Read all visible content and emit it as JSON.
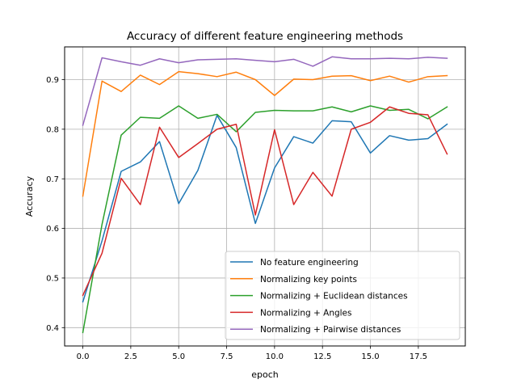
{
  "chart_data": {
    "type": "line",
    "title": "Accuracy of different feature engineering methods",
    "xlabel": "epoch",
    "ylabel": "Accuracy",
    "xlim": [
      -0.95,
      19.95
    ],
    "ylim": [
      0.363,
      0.966
    ],
    "xticks": [
      0.0,
      2.5,
      5.0,
      7.5,
      10.0,
      12.5,
      15.0,
      17.5
    ],
    "xtick_labels": [
      "0.0",
      "2.5",
      "5.0",
      "7.5",
      "10.0",
      "12.5",
      "15.0",
      "17.5"
    ],
    "yticks": [
      0.4,
      0.5,
      0.6,
      0.7,
      0.8,
      0.9
    ],
    "ytick_labels": [
      "0.4",
      "0.5",
      "0.6",
      "0.7",
      "0.8",
      "0.9"
    ],
    "grid": true,
    "legend_position": "lower-right",
    "x": [
      0,
      1,
      2,
      3,
      4,
      5,
      6,
      7,
      8,
      9,
      10,
      11,
      12,
      13,
      14,
      15,
      16,
      17,
      18,
      19
    ],
    "series": [
      {
        "name": "No feature engineering",
        "color": "#1f77b4",
        "values": [
          0.452,
          0.575,
          0.715,
          0.734,
          0.775,
          0.65,
          0.717,
          0.828,
          0.763,
          0.61,
          0.722,
          0.785,
          0.772,
          0.817,
          0.815,
          0.752,
          0.787,
          0.778,
          0.781,
          0.81
        ]
      },
      {
        "name": "Normalizing key points",
        "color": "#ff7f0e",
        "values": [
          0.665,
          0.897,
          0.876,
          0.909,
          0.89,
          0.916,
          0.912,
          0.906,
          0.915,
          0.9,
          0.868,
          0.901,
          0.9,
          0.907,
          0.908,
          0.898,
          0.907,
          0.895,
          0.906,
          0.908
        ]
      },
      {
        "name": "Normalizing + Euclidean distances",
        "color": "#2ca02c",
        "values": [
          0.39,
          0.608,
          0.788,
          0.824,
          0.822,
          0.847,
          0.822,
          0.83,
          0.795,
          0.834,
          0.838,
          0.837,
          0.837,
          0.845,
          0.835,
          0.847,
          0.838,
          0.84,
          0.821,
          0.845
        ]
      },
      {
        "name": "Normalizing + Angles",
        "color": "#d62728",
        "values": [
          0.465,
          0.55,
          0.701,
          0.648,
          0.804,
          0.743,
          0.771,
          0.8,
          0.81,
          0.627,
          0.799,
          0.648,
          0.713,
          0.665,
          0.8,
          0.814,
          0.845,
          0.832,
          0.829,
          0.75
        ]
      },
      {
        "name": "Normalizing + Pairwise distances",
        "color": "#9467bd",
        "values": [
          0.808,
          0.944,
          0.936,
          0.929,
          0.942,
          0.934,
          0.94,
          0.941,
          0.942,
          0.939,
          0.936,
          0.941,
          0.927,
          0.946,
          0.942,
          0.942,
          0.943,
          0.942,
          0.945,
          0.943
        ]
      }
    ]
  }
}
